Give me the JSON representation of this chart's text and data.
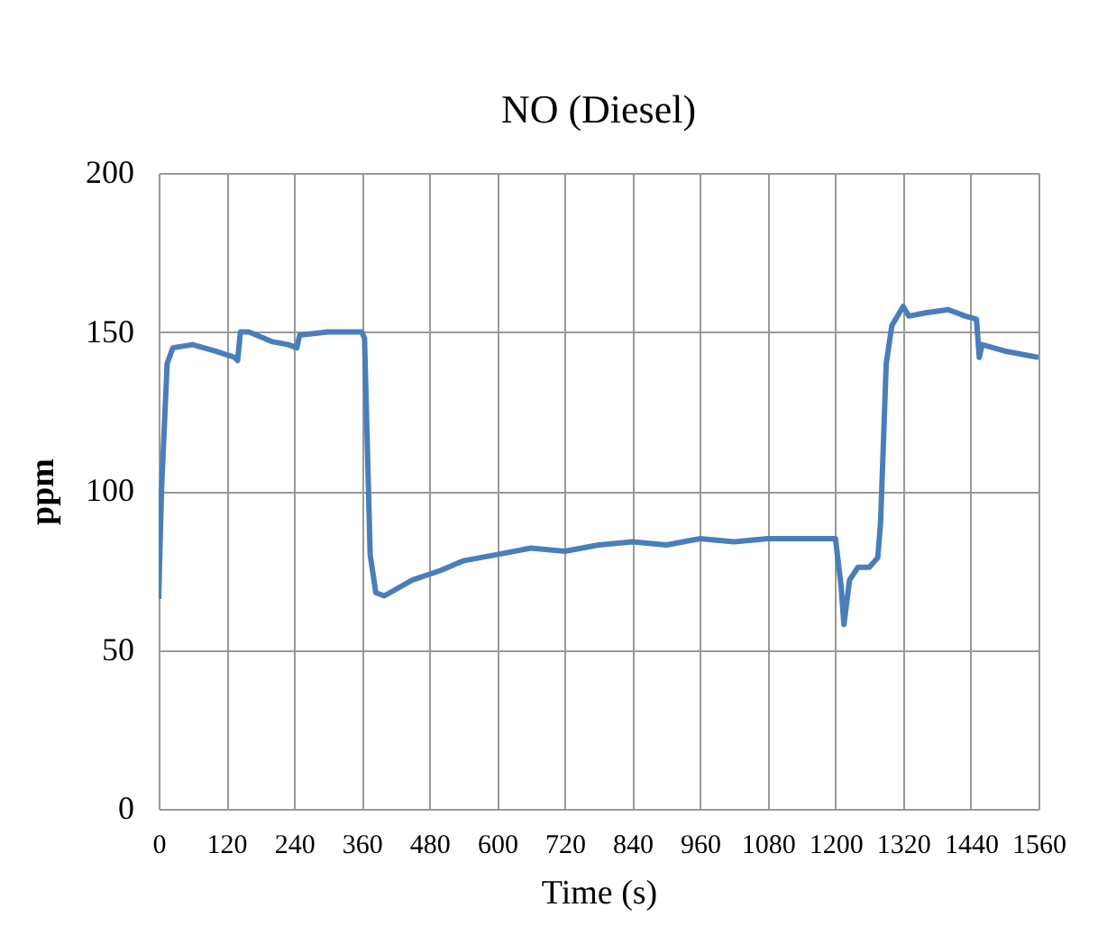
{
  "chart_data": {
    "type": "line",
    "title": "NO  (Diesel)",
    "xlabel": "Time (s)",
    "ylabel": "ppm",
    "x": [
      0,
      5,
      15,
      25,
      60,
      100,
      135,
      140,
      145,
      160,
      200,
      230,
      245,
      250,
      300,
      360,
      365,
      375,
      385,
      400,
      450,
      500,
      540,
      600,
      660,
      720,
      780,
      840,
      900,
      960,
      1020,
      1080,
      1140,
      1190,
      1200,
      1210,
      1215,
      1225,
      1240,
      1260,
      1275,
      1280,
      1290,
      1300,
      1320,
      1330,
      1360,
      1400,
      1430,
      1450,
      1455,
      1460,
      1500,
      1560
    ],
    "series": [
      {
        "color": "#4a7ebb",
        "values": [
          66,
          100,
          140,
          145,
          146,
          144,
          142,
          141,
          150,
          150,
          147,
          146,
          145,
          149,
          150,
          150,
          148,
          80,
          68,
          67,
          72,
          75,
          78,
          80,
          82,
          81,
          83,
          84,
          83,
          85,
          84,
          85,
          85,
          85,
          85,
          70,
          58,
          72,
          76,
          76,
          79,
          90,
          140,
          152,
          158,
          155,
          156,
          157,
          155,
          154,
          142,
          146,
          144,
          142
        ]
      }
    ],
    "xlim": [
      0,
      1560
    ],
    "xticks": [
      0,
      120,
      240,
      360,
      480,
      600,
      720,
      840,
      960,
      1080,
      1200,
      1320,
      1440,
      1560
    ],
    "ylim": [
      0,
      200
    ],
    "yticks": [
      0,
      50,
      100,
      150,
      200
    ],
    "grid": true,
    "legend": false,
    "line_style": "solid",
    "marker": "none"
  }
}
